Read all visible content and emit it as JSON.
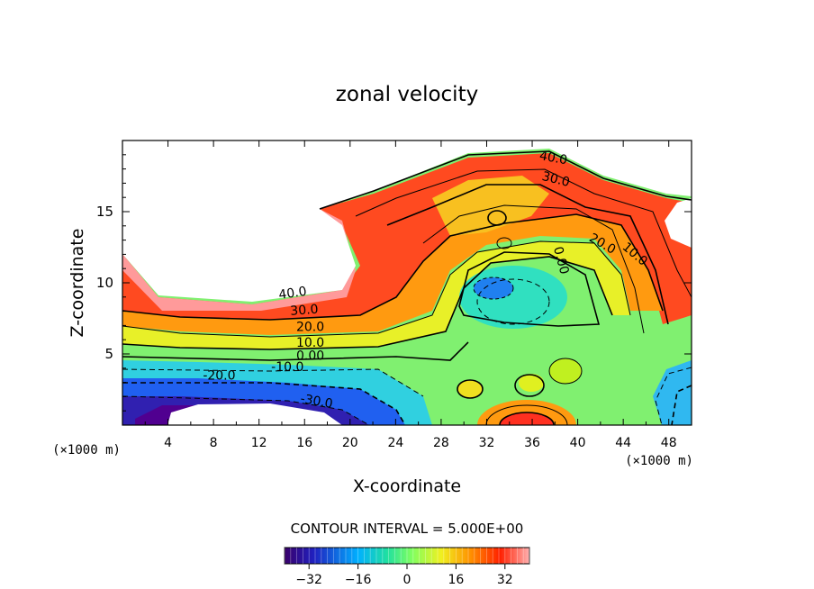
{
  "chart_data": {
    "type": "heatmap",
    "title": "zonal velocity",
    "xlabel": "X-coordinate",
    "ylabel": "Z-coordinate",
    "x_unit_label": "(×1000 m)",
    "x_range": [
      0,
      50
    ],
    "y_range": [
      0,
      20
    ],
    "x_ticks": [
      "4",
      "8",
      "12",
      "16",
      "20",
      "24",
      "28",
      "32",
      "36",
      "40",
      "44",
      "48"
    ],
    "y_ticks": [
      "5",
      "10",
      "15"
    ],
    "contour_interval_label": "CONTOUR INTERVAL = 5.000E+00",
    "colorbar": {
      "range": [
        -40,
        40
      ],
      "ticks": [
        "-32",
        "-16",
        "0",
        "16",
        "32"
      ]
    },
    "contour_labels": [
      "40.0",
      "30.0",
      "20.0",
      "10.0",
      "0.00",
      "-10.0",
      "-20.0",
      "-30.0",
      "40.0",
      "30.0",
      "20.0",
      "10.0",
      "0.00"
    ]
  }
}
